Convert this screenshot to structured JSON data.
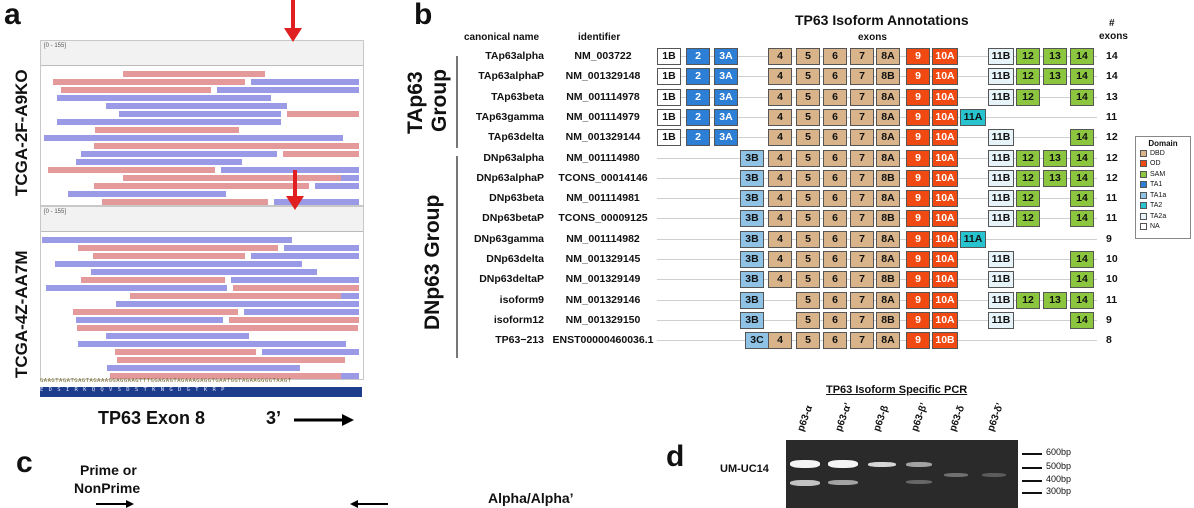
{
  "panel_a": {
    "letter": "a",
    "sample_top": "TCGA-2F-A9KO",
    "sample_bottom": "TCGA-4Z-AA7M",
    "coverage_scale": "[0 - 155]",
    "coverage_scale_bottom": "[0 - 155]",
    "nucleotides": "GAAGTAGATGAGTAGAAAGGAGGAAGTTTGGAGAGTAGAAAGAGGTGAATGGTAGAAGGGGTAAGT",
    "amino_acids": "E D S I R K Q Q V S D S T K N G D G T K R P",
    "exon_label": "TP63 Exon 8",
    "direction_label": "3’"
  },
  "panel_b": {
    "letter": "b",
    "title": "TP63 Isoform Annotations",
    "col_canonical": "canonical name",
    "col_identifier": "identifier",
    "col_exons": "exons",
    "col_count_1": "#",
    "col_count_2": "exons",
    "group_ta_1": "TAp63",
    "group_ta_2": "Group",
    "group_dn": "DNp63 Group",
    "exon_columns": [
      "1B",
      "2",
      "3A",
      "3B",
      "3C",
      "4",
      "5",
      "6",
      "7",
      "8A",
      "8B",
      "9",
      "10A",
      "10B",
      "11A",
      "11B",
      "12",
      "13",
      "14"
    ],
    "rows": [
      {
        "name": "TAp63alpha",
        "id": "NM_003722",
        "count": "14",
        "exons": [
          "1B",
          "2",
          "3A",
          "4",
          "5",
          "6",
          "7",
          "8A",
          "9",
          "10A",
          "11B",
          "12",
          "13",
          "14"
        ]
      },
      {
        "name": "TAp63alphaP",
        "id": "NM_001329148",
        "count": "14",
        "exons": [
          "1B",
          "2",
          "3A",
          "4",
          "5",
          "6",
          "7",
          "8B",
          "9",
          "10A",
          "11B",
          "12",
          "13",
          "14"
        ]
      },
      {
        "name": "TAp63beta",
        "id": "NM_001114978",
        "count": "13",
        "exons": [
          "1B",
          "2",
          "3A",
          "4",
          "5",
          "6",
          "7",
          "8A",
          "9",
          "10A",
          "11B",
          "12",
          "14"
        ]
      },
      {
        "name": "TAp63gamma",
        "id": "NM_001114979",
        "count": "11",
        "exons": [
          "1B",
          "2",
          "3A",
          "4",
          "5",
          "6",
          "7",
          "8A",
          "9",
          "10A",
          "11A"
        ]
      },
      {
        "name": "TAp63delta",
        "id": "NM_001329144",
        "count": "12",
        "exons": [
          "1B",
          "2",
          "3A",
          "4",
          "5",
          "6",
          "7",
          "8A",
          "9",
          "10A",
          "11B",
          "14"
        ]
      },
      {
        "name": "DNp63alpha",
        "id": "NM_001114980",
        "count": "12",
        "exons": [
          "3B",
          "4",
          "5",
          "6",
          "7",
          "8A",
          "9",
          "10A",
          "11B",
          "12",
          "13",
          "14"
        ]
      },
      {
        "name": "DNp63alphaP",
        "id": "TCONS_00014146",
        "count": "12",
        "exons": [
          "3B",
          "4",
          "5",
          "6",
          "7",
          "8B",
          "9",
          "10A",
          "11B",
          "12",
          "13",
          "14"
        ]
      },
      {
        "name": "DNp63beta",
        "id": "NM_001114981",
        "count": "11",
        "exons": [
          "3B",
          "4",
          "5",
          "6",
          "7",
          "8A",
          "9",
          "10A",
          "11B",
          "12",
          "14"
        ]
      },
      {
        "name": "DNp63betaP",
        "id": "TCONS_00009125",
        "count": "11",
        "exons": [
          "3B",
          "4",
          "5",
          "6",
          "7",
          "8B",
          "9",
          "10A",
          "11B",
          "12",
          "14"
        ]
      },
      {
        "name": "DNp63gamma",
        "id": "NM_001114982",
        "count": "9",
        "exons": [
          "3B",
          "4",
          "5",
          "6",
          "7",
          "8A",
          "9",
          "10A",
          "11A"
        ]
      },
      {
        "name": "DNp63delta",
        "id": "NM_001329145",
        "count": "10",
        "exons": [
          "3B",
          "4",
          "5",
          "6",
          "7",
          "8A",
          "9",
          "10A",
          "11B",
          "14"
        ]
      },
      {
        "name": "DNp63deltaP",
        "id": "NM_001329149",
        "count": "10",
        "exons": [
          "3B",
          "4",
          "5",
          "6",
          "7",
          "8B",
          "9",
          "10A",
          "11B",
          "14"
        ]
      },
      {
        "name": "isoform9",
        "id": "NM_001329146",
        "count": "11",
        "exons": [
          "3B",
          "5",
          "6",
          "7",
          "8A",
          "9",
          "10A",
          "11B",
          "12",
          "13",
          "14"
        ]
      },
      {
        "name": "isoform12",
        "id": "NM_001329150",
        "count": "9",
        "exons": [
          "3B",
          "5",
          "6",
          "7",
          "8B",
          "9",
          "10A",
          "11B",
          "14"
        ]
      },
      {
        "name": "TP63−213",
        "id": "ENST00000460036.1",
        "count": "8",
        "exons": [
          "3C",
          "4",
          "5",
          "6",
          "7",
          "8A",
          "9",
          "10B"
        ]
      }
    ],
    "legend_title": "Domain",
    "legend": [
      {
        "label": "DBD",
        "color": "#d9b48a"
      },
      {
        "label": "OD",
        "color": "#f04a12"
      },
      {
        "label": "SAM",
        "color": "#8cc63f"
      },
      {
        "label": "TA1",
        "color": "#2d7fd6"
      },
      {
        "label": "TA1a",
        "color": "#8fc3e6"
      },
      {
        "label": "TA2",
        "color": "#27c4cf"
      },
      {
        "label": "TA2a",
        "color": "#e6f3f8"
      },
      {
        "label": "NA",
        "color": "#ffffff"
      }
    ]
  },
  "panel_c": {
    "letter": "c",
    "prime_1": "Prime or",
    "prime_2": "NonPrime",
    "alpha": "Alpha/Alpha’"
  },
  "panel_d": {
    "letter": "d",
    "title": "TP63 Isoform Specific PCR",
    "cell_line": "UM-UC14",
    "lanes": [
      "p63-α",
      "p63-α’",
      "p63-β",
      "p63-β’",
      "p63-δ",
      "p63-δ’"
    ],
    "ladder": [
      "600bp",
      "500bp",
      "400bp",
      "300bp"
    ]
  }
}
